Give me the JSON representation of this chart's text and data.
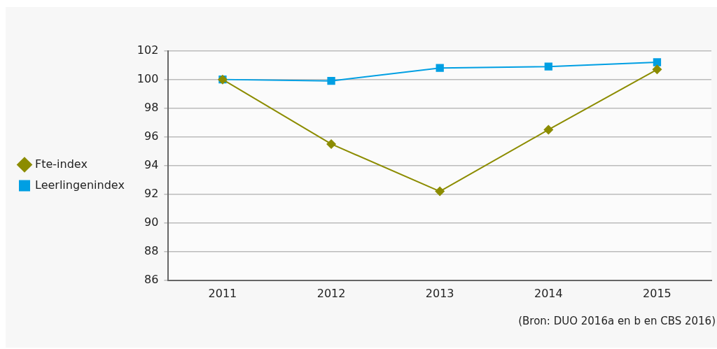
{
  "chart_data": {
    "type": "line",
    "categories": [
      "2011",
      "2012",
      "2013",
      "2014",
      "2015"
    ],
    "series": [
      {
        "name": "Fte-index",
        "color": "#8c8c00",
        "values": [
          100,
          95.5,
          92.2,
          96.5,
          100.7
        ],
        "marker": "diamond"
      },
      {
        "name": "Leerlingenindex",
        "color": "#009fe3",
        "values": [
          100,
          99.9,
          100.8,
          100.9,
          101.2
        ],
        "marker": "square"
      }
    ],
    "ylim": [
      86,
      102
    ],
    "yticks": [
      86,
      88,
      90,
      92,
      94,
      96,
      98,
      100,
      102
    ],
    "grid": "y",
    "legend": "left",
    "line_style": "solid",
    "annotations": [
      "(Bron: DUO 2016a en b en CBS 2016)"
    ]
  }
}
